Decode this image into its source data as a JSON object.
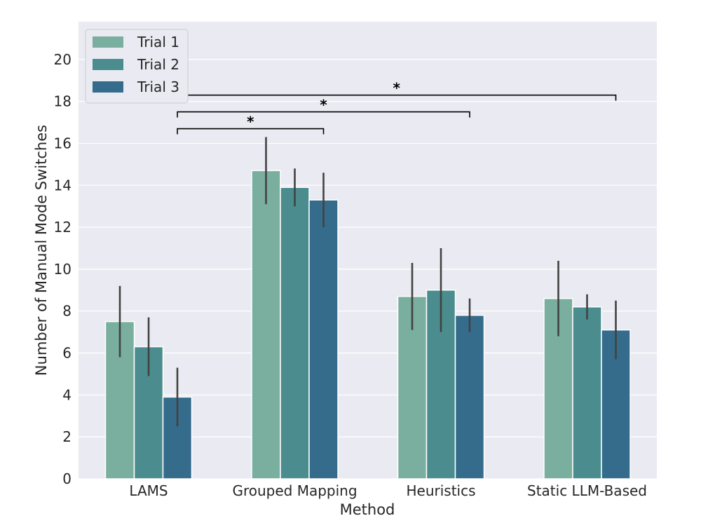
{
  "chart_data": {
    "type": "bar",
    "xlabel": "Method",
    "ylabel": "Number of Manual Mode Switches",
    "ylim": [
      0,
      21.8
    ],
    "yticks": [
      0,
      2,
      4,
      6,
      8,
      10,
      12,
      14,
      16,
      18,
      20
    ],
    "grid": true,
    "legend_position": "top-left",
    "categories": [
      "LAMS",
      "Grouped Mapping",
      "Heuristics",
      "Static LLM-Based"
    ],
    "series": [
      {
        "name": "Trial 1",
        "color": "#7aae9e",
        "values": [
          7.5,
          14.7,
          8.7,
          8.6
        ],
        "err_low": [
          5.8,
          13.1,
          7.1,
          6.8
        ],
        "err_high": [
          9.2,
          16.3,
          10.3,
          10.4
        ]
      },
      {
        "name": "Trial 2",
        "color": "#4b8d8e",
        "values": [
          6.3,
          13.9,
          9.0,
          8.2
        ],
        "err_low": [
          4.9,
          13.0,
          7.0,
          7.6
        ],
        "err_high": [
          7.7,
          14.8,
          11.0,
          8.8
        ]
      },
      {
        "name": "Trial 3",
        "color": "#366c8b",
        "values": [
          3.9,
          13.3,
          7.8,
          7.1
        ],
        "err_low": [
          2.5,
          12.0,
          7.0,
          5.7
        ],
        "err_high": [
          5.3,
          14.6,
          8.6,
          8.5
        ]
      }
    ],
    "significance": [
      {
        "from": "LAMS",
        "to": "Grouped Mapping",
        "y": 16.7,
        "label": "*"
      },
      {
        "from": "LAMS",
        "to": "Heuristics",
        "y": 17.5,
        "label": "*"
      },
      {
        "from": "LAMS",
        "to": "Static LLM-Based",
        "y": 18.3,
        "label": "*"
      }
    ]
  }
}
